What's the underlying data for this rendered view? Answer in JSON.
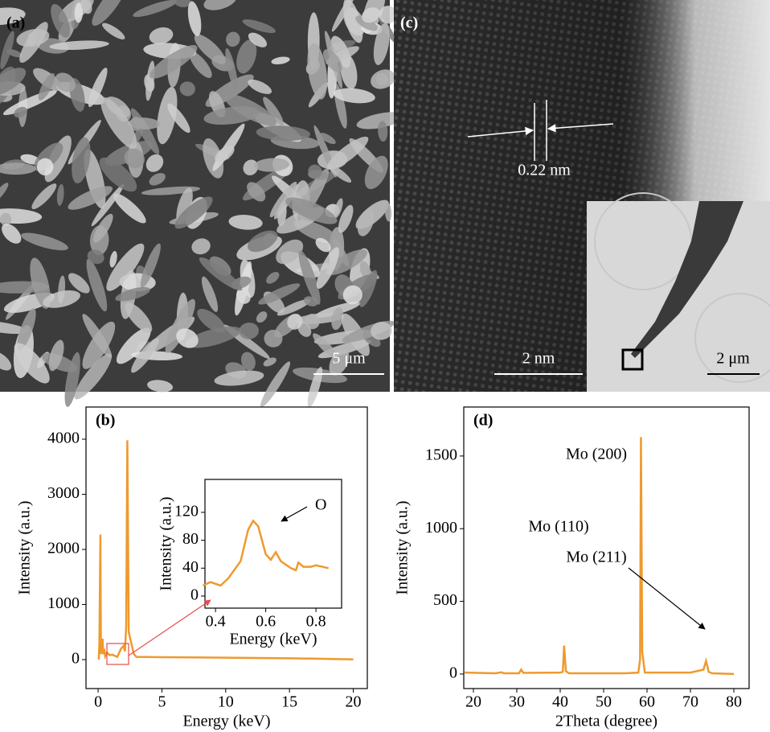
{
  "panels": [
    {
      "label": "(a)",
      "scale_bar": "5 μm"
    },
    {
      "label": "(c)",
      "spacing": "0.22 nm",
      "scale_bar": "2 nm",
      "inset_scale_bar": "2 μm"
    }
  ],
  "chart_data": [
    {
      "type": "line",
      "label": "(b)",
      "x_label": "Energy (keV)",
      "y_label": "Intensity (a.u.)",
      "xlim": [
        -0.95,
        21.1
      ],
      "ylim": [
        -525,
        4584
      ],
      "xticks": [
        0,
        5,
        10,
        15,
        20
      ],
      "yticks": [
        0,
        1000,
        2000,
        3000,
        4000
      ],
      "color": "#ee9a2e",
      "x": [
        0.05,
        0.1,
        0.18,
        0.22,
        0.28,
        0.35,
        0.4,
        0.5,
        0.55,
        0.7,
        0.9,
        1.1,
        1.5,
        1.8,
        2.0,
        2.1,
        2.2,
        2.29,
        2.4,
        2.6,
        2.8,
        3,
        5,
        10,
        15,
        20
      ],
      "values": [
        0,
        300,
        2270,
        100,
        300,
        380,
        100,
        150,
        60,
        130,
        80,
        90,
        50,
        200,
        250,
        150,
        600,
        3980,
        500,
        300,
        100,
        50,
        45,
        35,
        25,
        5
      ]
    },
    {
      "type": "line",
      "x_label": "Energy (keV)",
      "y_label": "Intensity (a.u.)",
      "xlim": [
        0.358,
        0.902
      ],
      "ylim": [
        -17.3,
        167.2
      ],
      "xticks": [
        0.4,
        0.6,
        0.8
      ],
      "yticks": [
        0,
        40,
        80,
        120
      ],
      "color": "#ee9a2e",
      "annotations": [
        "O"
      ],
      "x": [
        0.35,
        0.38,
        0.42,
        0.45,
        0.5,
        0.53,
        0.55,
        0.57,
        0.6,
        0.62,
        0.64,
        0.66,
        0.7,
        0.72,
        0.73,
        0.75,
        0.78,
        0.8,
        0.85
      ],
      "values": [
        15,
        20,
        15,
        25,
        50,
        95,
        108,
        100,
        60,
        52,
        63,
        50,
        40,
        37,
        48,
        42,
        42,
        44,
        40
      ]
    },
    {
      "type": "line",
      "label": "(d)",
      "x_label": "2Theta (degree)",
      "y_label": "Intensity (a.u.)",
      "xlim": [
        17.78,
        83.52
      ],
      "ylim": [
        -100,
        1837
      ],
      "xticks": [
        20,
        30,
        40,
        50,
        60,
        70,
        80
      ],
      "yticks": [
        0,
        500,
        1000,
        1500
      ],
      "color": "#ee9a2e",
      "annotations": [
        "Mo (200)",
        "Mo (211)",
        "Mo (110)"
      ],
      "x": [
        18,
        25,
        26.5,
        27,
        30.5,
        31,
        31.5,
        40,
        40.6,
        40.9,
        41.3,
        42,
        55,
        58,
        58.4,
        58.6,
        58.9,
        59.5,
        70,
        73,
        73.6,
        74.2,
        75,
        80
      ],
      "values": [
        10,
        5,
        12,
        5,
        5,
        30,
        8,
        10,
        15,
        195,
        20,
        5,
        5,
        10,
        100,
        1630,
        150,
        10,
        10,
        30,
        90,
        15,
        5,
        0
      ]
    }
  ]
}
